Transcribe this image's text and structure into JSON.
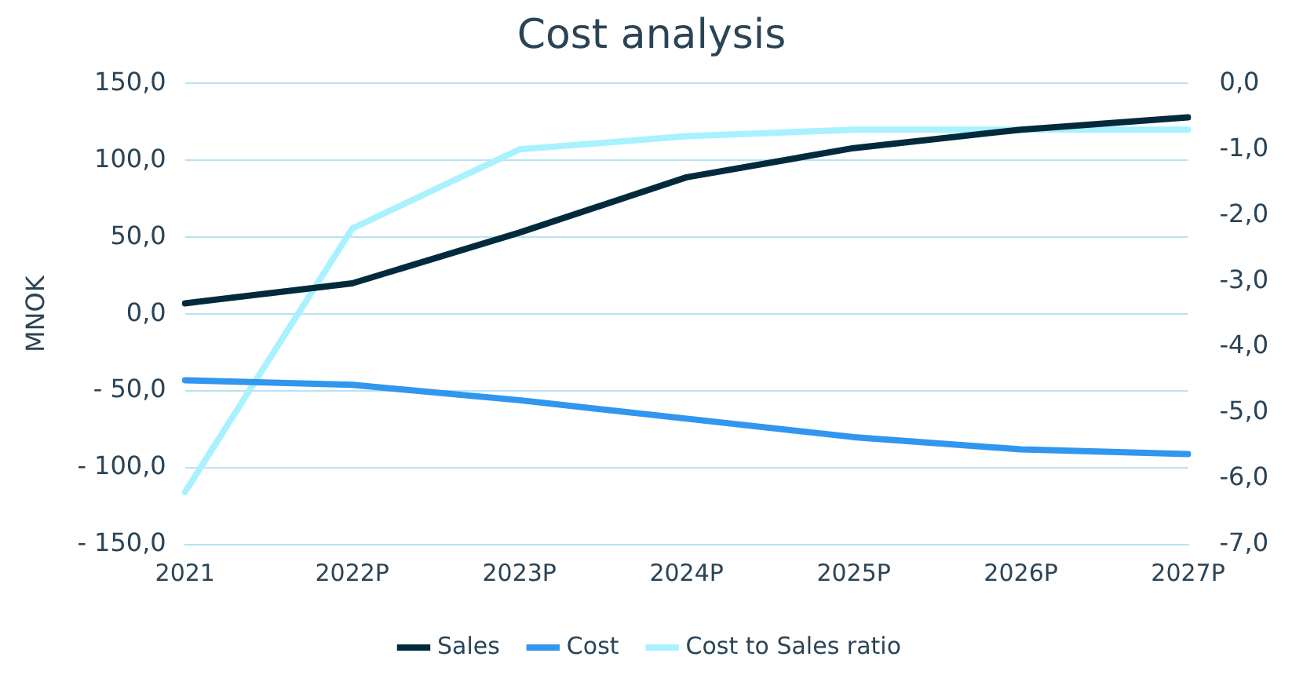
{
  "chart_data": {
    "type": "line",
    "title": "Cost analysis",
    "ylabel": "MNOK",
    "categories": [
      "2021",
      "2022P",
      "2023P",
      "2024P",
      "2025P",
      "2026P",
      "2027P"
    ],
    "series": [
      {
        "name": "Sales",
        "color": "#022a3d",
        "values": [
          7,
          20,
          53,
          89,
          108,
          120,
          128
        ]
      },
      {
        "name": "Cost",
        "color": "#3096ee",
        "values": [
          -43,
          -46,
          -56,
          -68,
          -80,
          -88,
          -91
        ]
      },
      {
        "name": "Cost to Sales ratio",
        "color": "#a9f1ff",
        "axis": "y2",
        "values": [
          -6.2,
          -2.2,
          -1.0,
          -0.8,
          -0.7,
          -0.7,
          -0.7
        ]
      }
    ],
    "ylim": [
      -150,
      150
    ],
    "yticks": [
      {
        "value": -150,
        "label": "- 150,0"
      },
      {
        "value": -100,
        "label": "- 100,0"
      },
      {
        "value": -50,
        "label": "- 50,0"
      },
      {
        "value": 0,
        "label": "0,0"
      },
      {
        "value": 50,
        "label": "50,0"
      },
      {
        "value": 100,
        "label": "100,0"
      },
      {
        "value": 150,
        "label": "150,0"
      }
    ],
    "y2lim": [
      -7,
      0
    ],
    "y2ticks": [
      {
        "value": -7,
        "label": "-7,0"
      },
      {
        "value": -6,
        "label": "-6,0"
      },
      {
        "value": -5,
        "label": "-5,0"
      },
      {
        "value": -4,
        "label": "-4,0"
      },
      {
        "value": -3,
        "label": "-3,0"
      },
      {
        "value": -2,
        "label": "-2,0"
      },
      {
        "value": -1,
        "label": "-1,0"
      },
      {
        "value": 0,
        "label": "0,0"
      }
    ],
    "grid": "y",
    "legend": "bottom",
    "marker": "none",
    "line_style": "solid"
  }
}
